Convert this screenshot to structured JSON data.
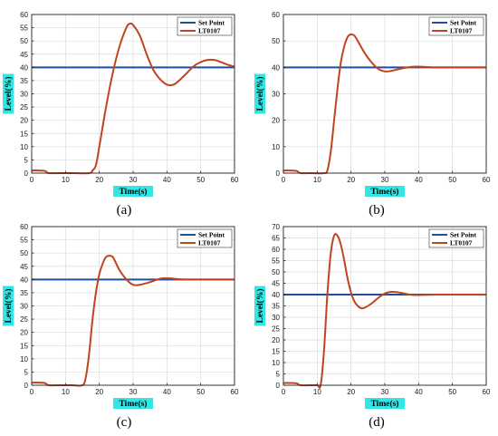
{
  "colors": {
    "setpoint": "#1f4e9c",
    "level": "#c0441c",
    "grid": "#dcdcdc",
    "label_bg": "#33e6e6"
  },
  "chart_data": [
    {
      "type": "line",
      "caption": "(a)",
      "xlabel": "Time(s)",
      "ylabel": "Level(%)",
      "xlim": [
        0,
        60
      ],
      "ylim": [
        0,
        60
      ],
      "xticks": [
        0,
        10,
        20,
        30,
        40,
        50,
        60
      ],
      "yticks": [
        0,
        5,
        10,
        15,
        20,
        25,
        30,
        35,
        40,
        45,
        50,
        55,
        60
      ],
      "grid": true,
      "legend_position": "top-right",
      "series": [
        {
          "name": "Set Point",
          "color": "#1f4e9c",
          "x": [
            0,
            60
          ],
          "y": [
            40,
            40
          ]
        },
        {
          "name": "LT0107",
          "color": "#c0441c",
          "x": [
            0,
            2,
            4,
            5,
            8,
            12,
            17,
            18,
            19,
            20,
            22,
            24,
            26,
            28,
            29,
            30,
            32,
            34,
            36,
            38,
            40,
            42,
            44,
            46,
            48,
            50,
            52,
            54,
            56,
            58,
            60
          ],
          "y": [
            1,
            1,
            0.8,
            0,
            0,
            0,
            0,
            1,
            3,
            10,
            25,
            38,
            48,
            55,
            56.5,
            56,
            52,
            45,
            39,
            35.5,
            33.5,
            33.5,
            35.5,
            38,
            40.5,
            42,
            42.8,
            42.8,
            42,
            41,
            40.3
          ]
        }
      ]
    },
    {
      "type": "line",
      "caption": "(b)",
      "xlabel": "Time(s)",
      "ylabel": "Level(%)",
      "xlim": [
        0,
        60
      ],
      "ylim": [
        0,
        60
      ],
      "xticks": [
        0,
        10,
        20,
        30,
        40,
        50,
        60
      ],
      "yticks": [
        0,
        10,
        20,
        30,
        40,
        50,
        60
      ],
      "grid": true,
      "legend_position": "top-right",
      "series": [
        {
          "name": "Set Point",
          "color": "#1f4e9c",
          "x": [
            0,
            60
          ],
          "y": [
            40,
            40
          ]
        },
        {
          "name": "LT0107",
          "color": "#c0441c",
          "x": [
            0,
            2,
            4,
            5,
            8,
            12,
            13,
            14,
            15,
            16,
            17,
            18,
            19,
            20,
            21,
            22,
            24,
            26,
            28,
            30,
            32,
            35,
            38,
            40,
            45,
            50,
            55,
            60
          ],
          "y": [
            1,
            1,
            0.8,
            0,
            0,
            0,
            1,
            8,
            20,
            32,
            42,
            48,
            51.5,
            52.5,
            52,
            50,
            45.5,
            42,
            39.5,
            38.5,
            38.7,
            39.6,
            40.2,
            40.3,
            40,
            40,
            40,
            40
          ]
        }
      ]
    },
    {
      "type": "line",
      "caption": "(c)",
      "xlabel": "Time(s)",
      "ylabel": "Level(%)",
      "xlim": [
        0,
        60
      ],
      "ylim": [
        0,
        60
      ],
      "xticks": [
        0,
        10,
        20,
        30,
        40,
        50,
        60
      ],
      "yticks": [
        0,
        5,
        10,
        15,
        20,
        25,
        30,
        35,
        40,
        45,
        50,
        55,
        60
      ],
      "grid": true,
      "legend_position": "top-right",
      "series": [
        {
          "name": "Set Point",
          "color": "#1f4e9c",
          "x": [
            0,
            60
          ],
          "y": [
            40,
            40
          ]
        },
        {
          "name": "LT0107",
          "color": "#c0441c",
          "x": [
            0,
            2,
            4,
            5,
            8,
            12,
            15,
            16,
            17,
            18,
            19,
            20,
            21,
            22,
            23,
            24,
            25,
            26,
            28,
            30,
            32,
            35,
            38,
            40,
            42,
            45,
            50,
            55,
            60
          ],
          "y": [
            1,
            1,
            0.8,
            0,
            0,
            0,
            0,
            3,
            12,
            25,
            35,
            42,
            46,
            48.5,
            49,
            48.5,
            46,
            43.5,
            40,
            38,
            38,
            39,
            40.3,
            40.5,
            40.3,
            40,
            40,
            40,
            40
          ]
        }
      ]
    },
    {
      "type": "line",
      "caption": "(d)",
      "xlabel": "Time(s)",
      "ylabel": "Level(%)",
      "xlim": [
        0,
        60
      ],
      "ylim": [
        0,
        70
      ],
      "xticks": [
        0,
        10,
        20,
        30,
        40,
        50,
        60
      ],
      "yticks": [
        0,
        5,
        10,
        15,
        20,
        25,
        30,
        35,
        40,
        45,
        50,
        55,
        60,
        65,
        70
      ],
      "grid": true,
      "legend_position": "top-right",
      "series": [
        {
          "name": "Set Point",
          "color": "#1f4e9c",
          "x": [
            0,
            60
          ],
          "y": [
            40,
            40
          ]
        },
        {
          "name": "LT0107",
          "color": "#c0441c",
          "x": [
            0,
            2,
            4,
            5,
            8,
            10,
            11,
            12,
            13,
            14,
            15,
            16,
            17,
            18,
            19,
            20,
            21,
            22,
            23,
            24,
            26,
            28,
            30,
            32,
            34,
            36,
            38,
            40,
            45,
            50,
            55,
            60
          ],
          "y": [
            1,
            1,
            0.8,
            0,
            0,
            0,
            0,
            15,
            40,
            58,
            66,
            66,
            62,
            55,
            47,
            41,
            37,
            35,
            34,
            34.2,
            36,
            38.5,
            40.5,
            41.2,
            41,
            40.4,
            39.9,
            39.8,
            40,
            40,
            40,
            40
          ]
        }
      ]
    }
  ]
}
